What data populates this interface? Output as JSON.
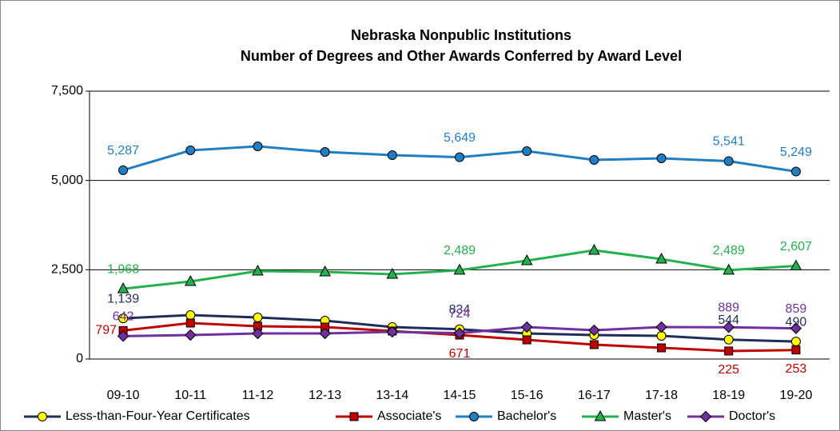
{
  "chart_data": {
    "type": "line",
    "title": "Nebraska Nonpublic Institutions",
    "subtitle": "Number of Degrees and Other Awards Conferred by Award Level",
    "categories": [
      "09-10",
      "10-11",
      "11-12",
      "12-13",
      "13-14",
      "14-15",
      "15-16",
      "16-17",
      "17-18",
      "18-19",
      "19-20"
    ],
    "ylim": [
      0,
      7500
    ],
    "yticks": [
      0,
      {
        "value": 2500,
        "label": "2,500"
      },
      {
        "value": 5000,
        "label": "5,000"
      },
      {
        "value": 7500,
        "label": "7,500"
      }
    ],
    "grid": true,
    "legend": "bottom",
    "series": [
      {
        "name": "Less-than-Four-Year Certificates",
        "color": "#1f2d5a",
        "marker": "circle",
        "marker_color": "#ffff00",
        "values": [
          1139,
          1231,
          1164,
          1075,
          895,
          834,
          716,
          672,
          649,
          544,
          490
        ],
        "value_labels": [
          "1,139",
          null,
          null,
          null,
          null,
          "834",
          null,
          null,
          null,
          "544",
          "490"
        ]
      },
      {
        "name": "Associate's",
        "color": "#c00000",
        "marker": "square",
        "marker_color": "#c00000",
        "values": [
          797,
          1007,
          918,
          895,
          784,
          671,
          537,
          403,
          313,
          225,
          253
        ],
        "value_labels": [
          "797",
          null,
          null,
          null,
          null,
          "671",
          null,
          null,
          null,
          "225",
          "253"
        ]
      },
      {
        "name": "Bachelor's",
        "color": "#1f7fc4",
        "marker": "circle",
        "marker_color": "#1f7fc4",
        "values": [
          5287,
          5843,
          5955,
          5798,
          5709,
          5649,
          5820,
          5574,
          5619,
          5541,
          5249
        ],
        "value_labels": [
          "5,287",
          null,
          null,
          null,
          null,
          "5,649",
          null,
          null,
          null,
          "5,541",
          "5,249"
        ]
      },
      {
        "name": "Master's",
        "color": "#22b14c",
        "marker": "triangle",
        "marker_color": "#22b14c",
        "values": [
          1968,
          2171,
          2462,
          2440,
          2373,
          2489,
          2753,
          3045,
          2798,
          2489,
          2607
        ],
        "value_labels": [
          "1,968",
          null,
          null,
          null,
          null,
          "2,489",
          null,
          null,
          null,
          "2,489",
          "2,607"
        ]
      },
      {
        "name": "Doctor's",
        "color": "#7030a0",
        "marker": "diamond",
        "marker_color": "#7030a0",
        "values": [
          642,
          672,
          716,
          716,
          761,
          724,
          895,
          806,
          895,
          889,
          859
        ],
        "value_labels": [
          "642",
          null,
          null,
          null,
          null,
          "724",
          null,
          null,
          null,
          "889",
          "859"
        ]
      }
    ]
  }
}
